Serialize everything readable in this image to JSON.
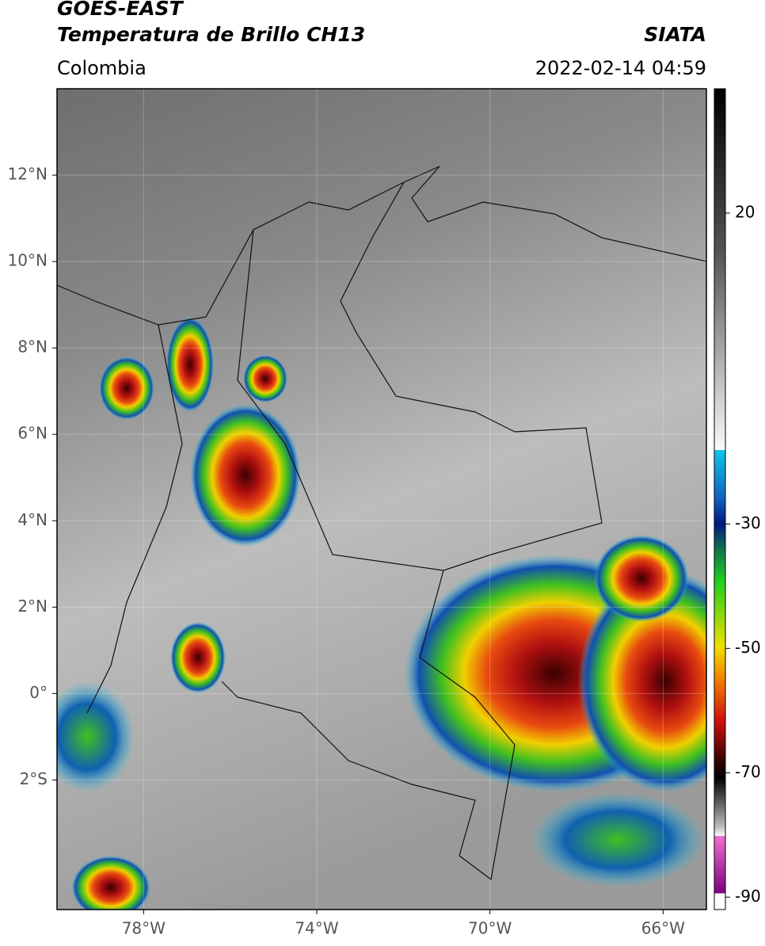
{
  "header": {
    "title": "GOES-EAST",
    "subtitle": "Temperatura de Brillo CH13",
    "source": "SIATA",
    "region": "Colombia",
    "timestamp": "2022-02-14 04:59"
  },
  "map": {
    "xlim": [
      -80,
      -65
    ],
    "ylim": [
      -5,
      14
    ],
    "xticks": [
      {
        "value": -78,
        "label": "78°W"
      },
      {
        "value": -74,
        "label": "74°W"
      },
      {
        "value": -70,
        "label": "70°W"
      },
      {
        "value": -66,
        "label": "66°W"
      }
    ],
    "yticks": [
      {
        "value": 12,
        "label": "12°N"
      },
      {
        "value": 10,
        "label": "10°N"
      },
      {
        "value": 8,
        "label": "8°N"
      },
      {
        "value": 6,
        "label": "6°N"
      },
      {
        "value": 4,
        "label": "4°N"
      },
      {
        "value": 2,
        "label": "2°N"
      },
      {
        "value": 0,
        "label": "0°"
      },
      {
        "value": -2,
        "label": "2°S"
      }
    ],
    "grid": true
  },
  "colorbar": {
    "lim": [
      -92,
      40
    ],
    "ticks": [
      20,
      -30,
      -50,
      -70,
      -90
    ]
  }
}
